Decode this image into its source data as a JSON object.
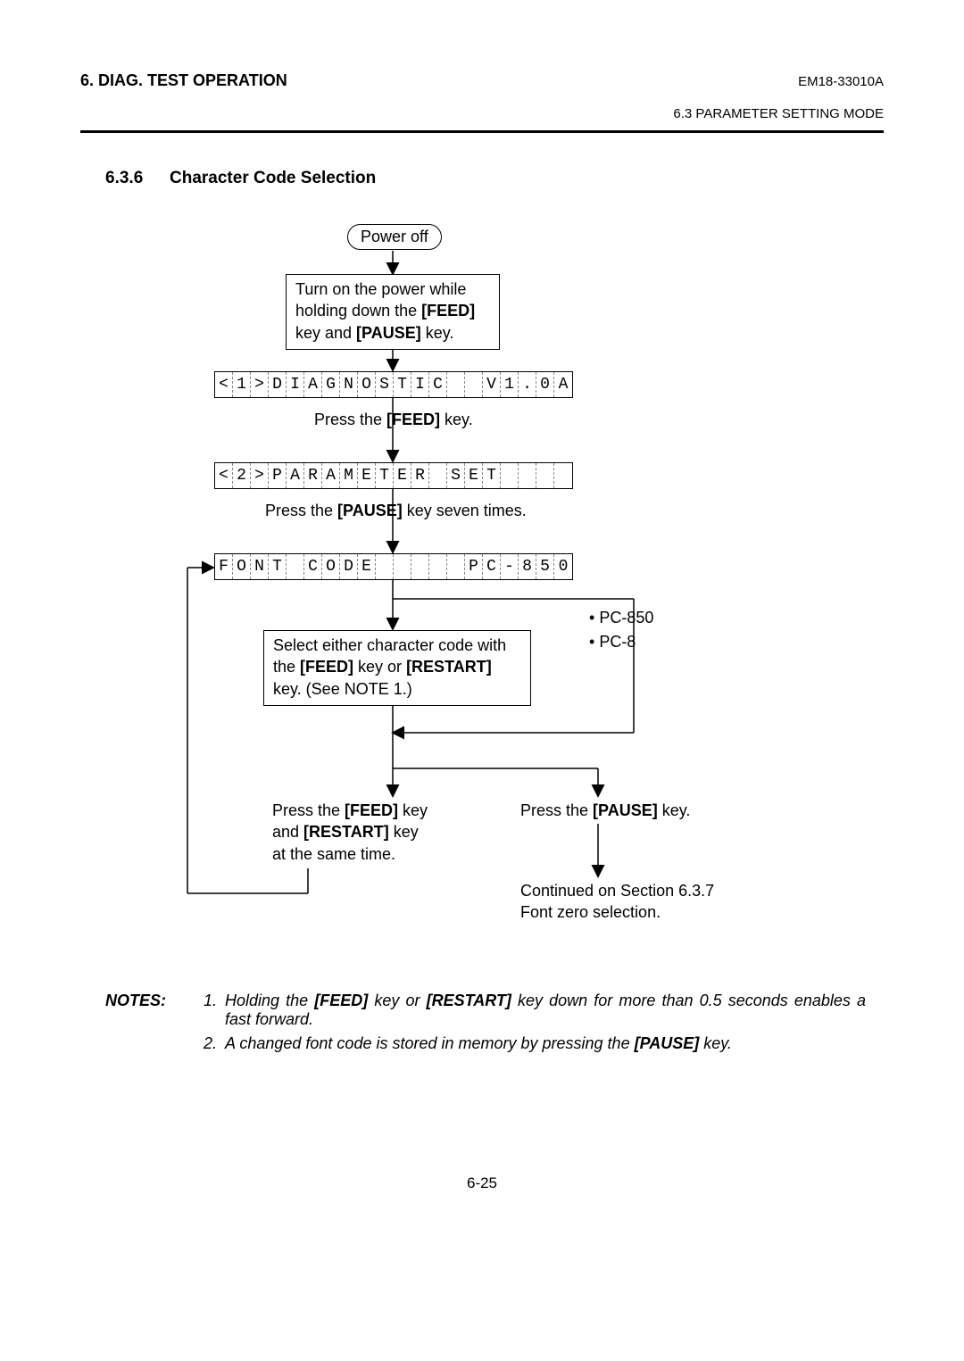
{
  "header": {
    "left": "6. DIAG. TEST OPERATION",
    "right": "EM18-33010A",
    "sub": "6.3 PARAMETER SETTING MODE"
  },
  "section": {
    "number": "6.3.6",
    "title": "Character Code Selection"
  },
  "flow": {
    "power_off": "Power off",
    "turn_on_l1": "Turn on the power while",
    "turn_on_l2_a": "holding down the ",
    "turn_on_l2_b": "[FEED]",
    "turn_on_l3_a": "key and ",
    "turn_on_l3_b": "[PAUSE]",
    "turn_on_l3_c": " key.",
    "lcd1": [
      "<",
      "1",
      ">",
      "D",
      "I",
      "A",
      "G",
      "N",
      "O",
      "S",
      "T",
      "I",
      "C",
      " ",
      " ",
      "V",
      "1",
      ".",
      "0",
      "A"
    ],
    "press_feed_a": "Press the ",
    "press_feed_b": "[FEED]",
    "press_feed_c": " key.",
    "lcd2": [
      "<",
      "2",
      ">",
      "P",
      "A",
      "R",
      "A",
      "M",
      "E",
      "T",
      "E",
      "R",
      " ",
      "S",
      "E",
      "T",
      " ",
      " ",
      " ",
      " "
    ],
    "press_pause7_a": "Press the ",
    "press_pause7_b": "[PAUSE]",
    "press_pause7_c": " key seven times.",
    "lcd3": [
      "F",
      "O",
      "N",
      "T",
      " ",
      "C",
      "O",
      "D",
      "E",
      " ",
      " ",
      " ",
      " ",
      " ",
      "P",
      "C",
      "-",
      "8",
      "5",
      "0"
    ],
    "select_l1": "Select either character code with",
    "select_l2_a": "the ",
    "select_l2_b": "[FEED]",
    "select_l2_c": " key or ",
    "select_l2_d": "[RESTART]",
    "select_l3": "key. (See NOTE 1.)",
    "codes": [
      "PC-850",
      "PC-8"
    ],
    "feed_restart_l1_a": "Press the ",
    "feed_restart_l1_b": "[FEED]",
    "feed_restart_l1_c": " key",
    "feed_restart_l2_a": "and ",
    "feed_restart_l2_b": "[RESTART]",
    "feed_restart_l2_c": " key",
    "feed_restart_l3": "at the same time.",
    "press_pause_a": "Press the ",
    "press_pause_b": "[PAUSE]",
    "press_pause_c": " key.",
    "continued_l1": "Continued on Section 6.3.7",
    "continued_l2": "Font zero selection."
  },
  "notes": {
    "label": "NOTES:",
    "n1_a": "Holding the ",
    "n1_b": "[FEED]",
    "n1_c": " key or ",
    "n1_d": "[RESTART]",
    "n1_e": " key down for more than 0.5 seconds enables a fast forward.",
    "n2_a": "A changed font code is stored in memory by pressing the ",
    "n2_b": "[PAUSE]",
    "n2_c": " key."
  },
  "pagenum": "6-25"
}
